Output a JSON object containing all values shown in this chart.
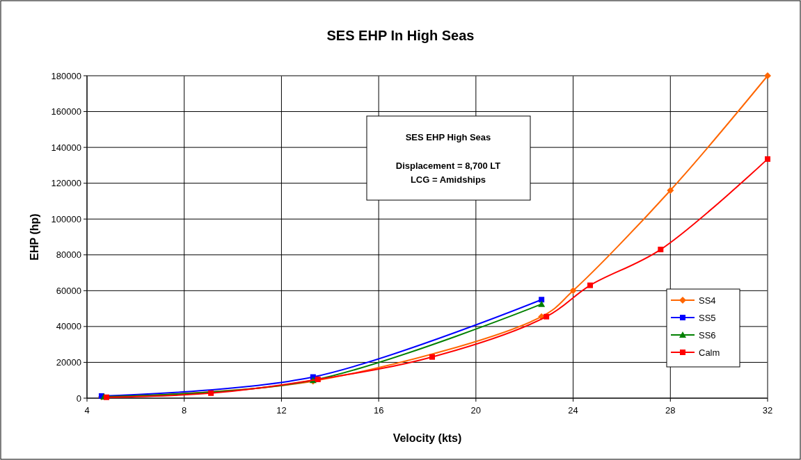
{
  "chart_data": {
    "type": "line",
    "title": "SES EHP In High Seas",
    "xlabel": "Velocity (kts)",
    "ylabel": "EHP (hp)",
    "annotations": [
      "SES EHP High Seas",
      "Displacement = 8,700 LT",
      "LCG = Amidships"
    ],
    "xlim": [
      4,
      32
    ],
    "xticks": [
      4,
      8,
      12,
      16,
      20,
      24,
      28,
      32
    ],
    "ylim": [
      0,
      180000
    ],
    "yticks": [
      0,
      20000,
      40000,
      60000,
      80000,
      100000,
      120000,
      140000,
      160000,
      180000
    ],
    "grid": true,
    "legend": "right",
    "series": [
      {
        "name": "SS4",
        "color": "#ff6600",
        "marker": "diamond",
        "x": [
          4.6,
          13.3,
          22.7,
          24,
          28,
          32
        ],
        "values": [
          800,
          9500,
          45500,
          60000,
          116000,
          180000
        ]
      },
      {
        "name": "SS5",
        "color": "#0000ff",
        "marker": "square",
        "x": [
          4.6,
          13.3,
          22.7
        ],
        "values": [
          1200,
          11800,
          55000
        ]
      },
      {
        "name": "SS6",
        "color": "#008000",
        "marker": "triangle",
        "x": [
          4.7,
          13.3,
          22.7
        ],
        "values": [
          800,
          10000,
          52500
        ]
      },
      {
        "name": "Calm",
        "color": "#ff0000",
        "marker": "square",
        "x": [
          4.8,
          9.1,
          13.5,
          18.2,
          22.9,
          24.7,
          27.6,
          32
        ],
        "values": [
          500,
          2800,
          10500,
          23000,
          45500,
          63000,
          83000,
          133500
        ]
      }
    ]
  }
}
